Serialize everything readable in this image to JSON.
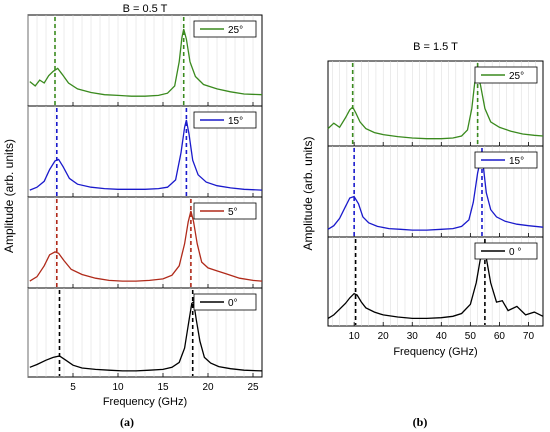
{
  "chart_data": [
    {
      "type": "line",
      "title": "B = 0.5 T",
      "xlabel": "Frequency (GHz)",
      "ylabel": "Amplitude (arb. units)",
      "caption": "(a)",
      "xlim": [
        0,
        26
      ],
      "xticks": [
        5,
        10,
        15,
        20,
        25
      ],
      "series": [
        {
          "name": "25°",
          "color": "#3a8a1e",
          "peaks": [
            3.1,
            17.3
          ],
          "marker_lines": [
            3.0,
            17.3
          ],
          "x": [
            0.2,
            0.8,
            1.3,
            1.8,
            2.3,
            2.8,
            3.3,
            3.8,
            4.5,
            5.5,
            7,
            8.5,
            10,
            11.5,
            13,
            14.5,
            15.5,
            16.3,
            16.8,
            17.1,
            17.3,
            17.6,
            18,
            18.6,
            19.5,
            21,
            22.5,
            24,
            26
          ],
          "y": [
            0.28,
            0.22,
            0.3,
            0.26,
            0.36,
            0.42,
            0.46,
            0.38,
            0.26,
            0.18,
            0.13,
            0.1,
            0.09,
            0.08,
            0.08,
            0.09,
            0.12,
            0.22,
            0.55,
            0.88,
            1.0,
            0.86,
            0.55,
            0.35,
            0.24,
            0.18,
            0.14,
            0.11,
            0.1
          ]
        },
        {
          "name": "15°",
          "color": "#1a1acc",
          "peaks": [
            3.3,
            17.6
          ],
          "marker_lines": [
            3.2,
            17.6
          ],
          "x": [
            0.2,
            1,
            1.8,
            2.4,
            3,
            3.4,
            3.9,
            4.6,
            5.5,
            7,
            8.5,
            10,
            11.5,
            13,
            14.5,
            15.5,
            16.4,
            17,
            17.4,
            17.6,
            17.9,
            18.3,
            18.9,
            19.8,
            21,
            22.5,
            24,
            26
          ],
          "y": [
            0.04,
            0.08,
            0.16,
            0.32,
            0.44,
            0.46,
            0.36,
            0.2,
            0.12,
            0.08,
            0.06,
            0.05,
            0.05,
            0.05,
            0.06,
            0.08,
            0.18,
            0.55,
            0.9,
            1.0,
            0.8,
            0.45,
            0.25,
            0.15,
            0.1,
            0.07,
            0.05,
            0.04
          ]
        },
        {
          "name": "5°",
          "color": "#b02a1a",
          "peaks": [
            3.2,
            18.2
          ],
          "marker_lines": [
            3.2,
            18.1
          ],
          "x": [
            0.2,
            1,
            1.8,
            2.4,
            3,
            3.4,
            4,
            4.8,
            6,
            7.5,
            9,
            10.5,
            12,
            13.5,
            15,
            16,
            16.8,
            17.4,
            17.8,
            18.1,
            18.4,
            18.8,
            19.3,
            20,
            21,
            22,
            23.5,
            25,
            26
          ],
          "y": [
            0.04,
            0.1,
            0.25,
            0.4,
            0.44,
            0.42,
            0.32,
            0.2,
            0.13,
            0.08,
            0.05,
            0.04,
            0.04,
            0.05,
            0.07,
            0.12,
            0.25,
            0.55,
            0.85,
            1.0,
            0.85,
            0.55,
            0.3,
            0.22,
            0.18,
            0.14,
            0.08,
            0.05,
            0.04
          ]
        },
        {
          "name": "0°",
          "color": "#000000",
          "peaks": [
            3.5,
            18.3
          ],
          "marker_lines": [
            3.5,
            18.3
          ],
          "x": [
            0.2,
            1,
            2,
            2.8,
            3.5,
            4.2,
            5,
            6,
            7.5,
            9,
            10.5,
            12,
            13.5,
            15,
            16,
            16.8,
            17.4,
            17.9,
            18.2,
            18.4,
            18.7,
            19.1,
            19.6,
            20.3,
            21.2,
            22.5,
            24,
            26
          ],
          "y": [
            0.08,
            0.12,
            0.18,
            0.22,
            0.24,
            0.18,
            0.11,
            0.07,
            0.05,
            0.04,
            0.03,
            0.03,
            0.04,
            0.05,
            0.08,
            0.15,
            0.35,
            0.75,
            0.98,
            1.0,
            0.75,
            0.45,
            0.22,
            0.14,
            0.09,
            0.06,
            0.04,
            0.03
          ]
        }
      ]
    },
    {
      "type": "line",
      "title": "B = 1.5 T",
      "xlabel": "Frequency (GHz)",
      "ylabel": "Amplitude (arb. units)",
      "caption": "(b)",
      "xlim": [
        1,
        75
      ],
      "xticks": [
        10,
        20,
        30,
        40,
        50,
        60,
        70
      ],
      "series": [
        {
          "name": "25°",
          "color": "#3a8a1e",
          "peaks": [
            9.5,
            52
          ],
          "marker_lines": [
            9.5,
            52.5
          ],
          "x": [
            1,
            3,
            5,
            7,
            8.5,
            9.5,
            10.5,
            12,
            14,
            17,
            20,
            25,
            30,
            35,
            40,
            44,
            47,
            49,
            50.5,
            51.5,
            52.5,
            53.5,
            55,
            57,
            60,
            64,
            68,
            72,
            75
          ],
          "y": [
            0.2,
            0.28,
            0.22,
            0.36,
            0.48,
            0.52,
            0.44,
            0.3,
            0.2,
            0.14,
            0.11,
            0.08,
            0.06,
            0.05,
            0.05,
            0.06,
            0.09,
            0.18,
            0.5,
            0.88,
            1.0,
            0.85,
            0.5,
            0.3,
            0.22,
            0.16,
            0.12,
            0.1,
            0.09
          ]
        },
        {
          "name": "15°",
          "color": "#1a1acc",
          "peaks": [
            10,
            53.5
          ],
          "marker_lines": [
            10.0,
            54.0
          ],
          "x": [
            1,
            3,
            5,
            7,
            8.5,
            10,
            11.5,
            13,
            15,
            18,
            22,
            26,
            30,
            35,
            40,
            44,
            47,
            49.5,
            51,
            52.5,
            53.5,
            54.5,
            55.5,
            57,
            59,
            62,
            66,
            70,
            75
          ],
          "y": [
            0.05,
            0.1,
            0.2,
            0.36,
            0.48,
            0.5,
            0.4,
            0.22,
            0.14,
            0.09,
            0.06,
            0.05,
            0.04,
            0.04,
            0.05,
            0.06,
            0.09,
            0.18,
            0.42,
            0.82,
            1.0,
            0.9,
            0.55,
            0.32,
            0.22,
            0.16,
            0.12,
            0.1,
            0.08
          ]
        },
        {
          "name": "0 °",
          "color": "#000000",
          "peaks": [
            10.5,
            55
          ],
          "marker_lines": [
            10.5,
            55.0
          ],
          "x": [
            1,
            3,
            5,
            7,
            8.5,
            10,
            11,
            12.5,
            14,
            17,
            20,
            25,
            30,
            35,
            40,
            44,
            47,
            50,
            52,
            53.5,
            54.5,
            55.5,
            57,
            59,
            61,
            63,
            66,
            69,
            72,
            75
          ],
          "y": [
            0.05,
            0.1,
            0.18,
            0.26,
            0.34,
            0.4,
            0.38,
            0.28,
            0.2,
            0.14,
            0.1,
            0.07,
            0.05,
            0.05,
            0.06,
            0.08,
            0.12,
            0.25,
            0.55,
            0.9,
            1.0,
            0.9,
            0.55,
            0.28,
            0.3,
            0.16,
            0.22,
            0.1,
            0.14,
            0.08
          ]
        }
      ]
    }
  ]
}
